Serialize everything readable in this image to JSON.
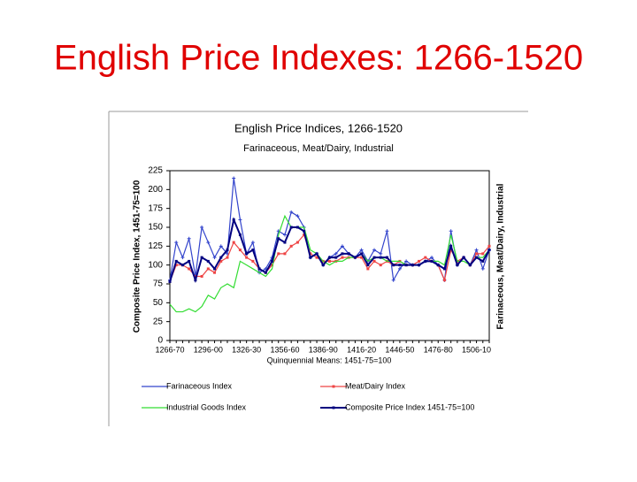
{
  "slide_title": "English Price Indexes: 1266-1520",
  "chart_data": {
    "type": "line",
    "title": "English Price Indices, 1266-1520",
    "subtitle": "Farinaceous, Meat/Dairy, Industrial",
    "y_label": "Composite Price Index, 1451-75=100",
    "y2_label": "Farinaceous, Meat/Dairy, Industrial",
    "x_label": "Quinquennial Means: 1451-75=100",
    "categories": [
      "1266-70",
      null,
      null,
      null,
      null,
      null,
      "1296-00",
      null,
      null,
      null,
      null,
      null,
      "1326-30",
      null,
      null,
      null,
      null,
      null,
      "1356-60",
      null,
      null,
      null,
      null,
      null,
      "1386-90",
      null,
      null,
      null,
      null,
      null,
      "1416-20",
      null,
      null,
      null,
      null,
      null,
      "1446-50",
      null,
      null,
      null,
      null,
      null,
      "1476-80",
      null,
      null,
      null,
      null,
      null,
      "1506-10",
      null,
      null
    ],
    "ylim": [
      0,
      225
    ],
    "yticks": [
      0,
      25,
      50,
      75,
      100,
      125,
      150,
      175,
      200,
      225
    ],
    "legend": "bottom",
    "series": [
      {
        "name": "Farinaceous Index",
        "color": "#3344cc",
        "values": [
          80,
          130,
          110,
          135,
          85,
          150,
          130,
          110,
          125,
          115,
          215,
          160,
          115,
          130,
          90,
          95,
          110,
          145,
          140,
          170,
          165,
          150,
          110,
          115,
          100,
          110,
          115,
          125,
          115,
          110,
          120,
          105,
          120,
          115,
          145,
          80,
          95,
          105,
          100,
          100,
          105,
          110,
          100,
          80,
          145,
          100,
          110,
          100,
          120,
          95,
          120
        ]
      },
      {
        "name": "Meat/Dairy Index",
        "color": "#ee4444",
        "values": [
          78,
          100,
          100,
          95,
          85,
          85,
          95,
          90,
          105,
          110,
          130,
          120,
          110,
          105,
          95,
          90,
          100,
          115,
          115,
          125,
          130,
          140,
          115,
          110,
          105,
          105,
          105,
          110,
          110,
          110,
          110,
          95,
          105,
          100,
          105,
          100,
          105,
          100,
          100,
          105,
          110,
          105,
          100,
          80,
          120,
          105,
          110,
          100,
          115,
          115,
          125
        ]
      },
      {
        "name": "Industrial Goods Index",
        "color": "#33dd33",
        "values": [
          48,
          38,
          38,
          42,
          38,
          45,
          60,
          55,
          70,
          75,
          70,
          105,
          100,
          95,
          90,
          85,
          95,
          140,
          165,
          150,
          150,
          150,
          120,
          115,
          105,
          100,
          105,
          105,
          110,
          110,
          115,
          105,
          110,
          110,
          105,
          105,
          105,
          100,
          100,
          100,
          105,
          105,
          105,
          100,
          140,
          105,
          105,
          100,
          110,
          110,
          120
        ]
      },
      {
        "name": "Composite Price Index 1451-75=100",
        "color": "#000080",
        "values": [
          78,
          105,
          100,
          105,
          80,
          110,
          105,
          95,
          110,
          120,
          160,
          140,
          115,
          120,
          95,
          90,
          105,
          135,
          130,
          150,
          150,
          145,
          110,
          115,
          100,
          110,
          110,
          115,
          115,
          110,
          115,
          100,
          110,
          110,
          110,
          100,
          100,
          100,
          100,
          100,
          105,
          105,
          100,
          95,
          125,
          100,
          110,
          100,
          110,
          105,
          120
        ]
      }
    ]
  }
}
